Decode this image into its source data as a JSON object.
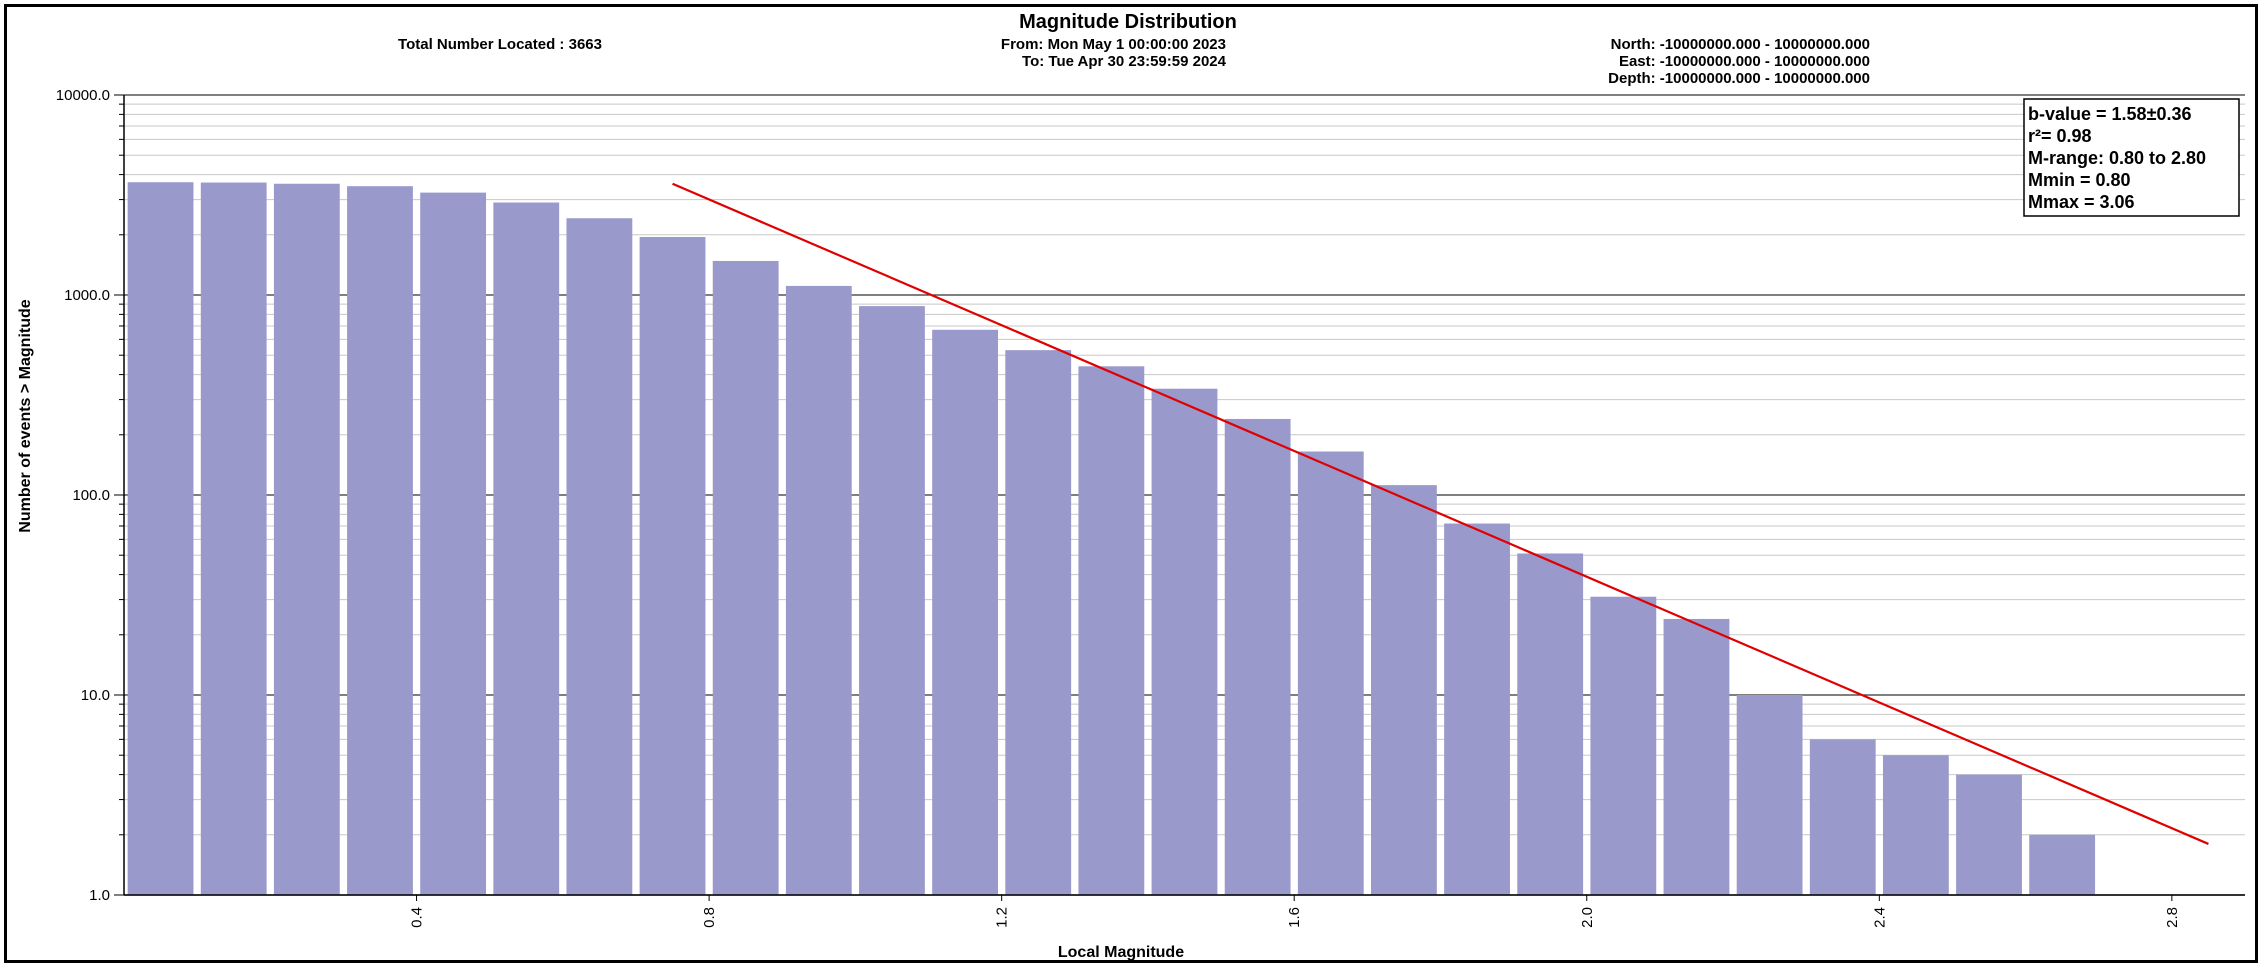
{
  "header": {
    "total_located": "Total Number Located : 3663",
    "from": "From: Mon May  1 00:00:00 2023",
    "to": "To: Tue Apr 30 23:59:59 2024",
    "north": "North: -10000000.000 - 10000000.000",
    "east": "East: -10000000.000 - 10000000.000",
    "depth": "Depth: -10000000.000 - 10000000.000"
  },
  "stats": {
    "b_value": "b-value = 1.58±0.36",
    "r2": "r²= 0.98",
    "m_range": "M-range:  0.80 to 2.80",
    "mmin": "Mmin = 0.80",
    "mmax": "Mmax = 3.06"
  },
  "chart_data": {
    "type": "bar",
    "title": "Magnitude Distribution",
    "xlabel": "Local Magnitude",
    "ylabel": "Number of events > Magnitude",
    "yscale": "log",
    "ylim": [
      1,
      10000
    ],
    "xlim": [
      0.0,
      2.9
    ],
    "yticks": [
      "1.0",
      "10.0",
      "100.0",
      "1000.0",
      "10000.0"
    ],
    "xticks": [
      "0.4",
      "0.8",
      "1.2",
      "1.6",
      "2.0",
      "2.4",
      "2.8"
    ],
    "grid": true,
    "bar_color": "#9999cc",
    "fit_color": "#e00000",
    "bars": {
      "x": [
        0.1,
        0.2,
        0.3,
        0.4,
        0.5,
        0.6,
        0.7,
        0.8,
        0.9,
        1.0,
        1.1,
        1.2,
        1.3,
        1.4,
        1.5,
        1.6,
        1.7,
        1.8,
        1.9,
        2.0,
        2.1,
        2.2,
        2.3,
        2.4,
        2.5,
        2.6,
        2.7,
        2.8
      ],
      "values": [
        3663,
        3650,
        3600,
        3500,
        3250,
        2900,
        2420,
        1950,
        1480,
        1110,
        880,
        670,
        530,
        440,
        340,
        240,
        165,
        112,
        72,
        51,
        31,
        24,
        10,
        6,
        5,
        4,
        2,
        1
      ]
    },
    "fit_line": {
      "x": [
        0.75,
        2.85
      ],
      "y": [
        3600,
        1.8
      ]
    }
  }
}
